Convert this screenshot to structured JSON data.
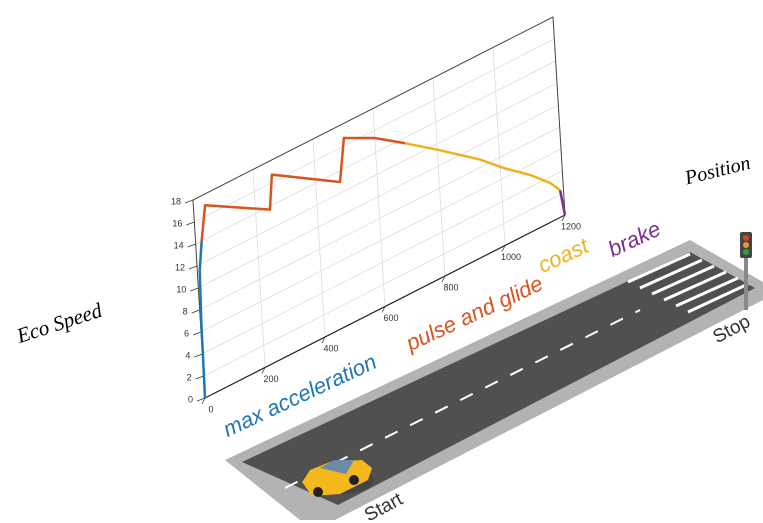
{
  "chart_data": {
    "type": "line",
    "xlabel": "Position",
    "ylabel": "Eco Speed",
    "xlim": [
      0,
      1200
    ],
    "ylim": [
      0,
      18
    ],
    "xticks": [
      0,
      200,
      400,
      600,
      800,
      1000,
      1200
    ],
    "yticks": [
      0,
      2,
      4,
      6,
      8,
      10,
      12,
      14,
      16,
      18
    ],
    "grid": true,
    "series": [
      {
        "name": "max acceleration",
        "color": "#1f77b4",
        "x": [
          0,
          3,
          8,
          20
        ],
        "values": [
          0,
          7,
          11.5,
          14
        ]
      },
      {
        "name": "pulse and glide",
        "color": "#d9541e",
        "x": [
          20,
          38,
          247,
          260,
          479,
          500,
          601,
          697
        ],
        "values": [
          14,
          17,
          13.7,
          16.7,
          13,
          16.7,
          15.3,
          13.5
        ]
      },
      {
        "name": "coast",
        "color": "#edb120",
        "x": [
          697,
          809,
          936,
          1015,
          1095,
          1158,
          1189
        ],
        "values": [
          13.5,
          11.3,
          8.7,
          6.8,
          5.1,
          3.5,
          2.4
        ]
      },
      {
        "name": "brake",
        "color": "#7e2f8e",
        "x": [
          1189,
          1200
        ],
        "values": [
          2.4,
          0
        ]
      }
    ],
    "annotations": [
      "Start",
      "Stop"
    ]
  }
}
